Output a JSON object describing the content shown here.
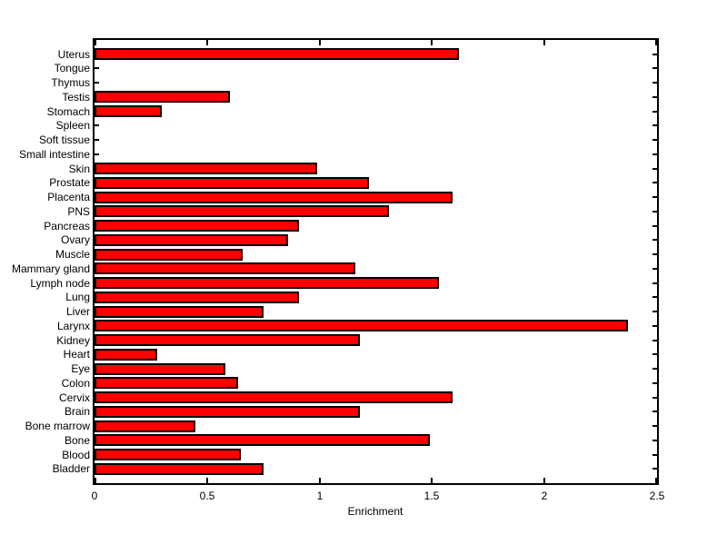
{
  "chart_data": {
    "type": "bar",
    "orientation": "horizontal",
    "title": "",
    "xlabel": "Enrichment",
    "ylabel": "",
    "xlim": [
      0,
      2.5
    ],
    "x_ticks": [
      "0",
      "0.5",
      "1",
      "1.5",
      "2",
      "2.5"
    ],
    "x_tick_values": [
      0,
      0.5,
      1,
      1.5,
      2,
      2.5
    ],
    "grid": "off",
    "legend": "none",
    "bar_color": "#ff0000",
    "bar_edge_color": "#000000",
    "axis_color": "#000000",
    "background_color": "#ffffff",
    "categories": [
      "Uterus",
      "Tongue",
      "Thymus",
      "Testis",
      "Stomach",
      "Spleen",
      "Soft tissue",
      "Small intestine",
      "Skin",
      "Prostate",
      "Placenta",
      "PNS",
      "Pancreas",
      "Ovary",
      "Muscle",
      "Mammary gland",
      "Lymph node",
      "Lung",
      "Liver",
      "Larynx",
      "Kidney",
      "Heart",
      "Eye",
      "Colon",
      "Cervix",
      "Brain",
      "Bone marrow",
      "Bone",
      "Blood",
      "Bladder"
    ],
    "values": [
      1.62,
      0,
      0,
      0.6,
      0.3,
      0,
      0,
      0,
      0.99,
      1.22,
      1.59,
      1.31,
      0.91,
      0.86,
      0.66,
      1.16,
      1.53,
      0.91,
      0.75,
      2.37,
      1.18,
      0.28,
      0.58,
      0.64,
      1.59,
      1.18,
      0.45,
      1.49,
      0.65,
      0.75
    ]
  }
}
